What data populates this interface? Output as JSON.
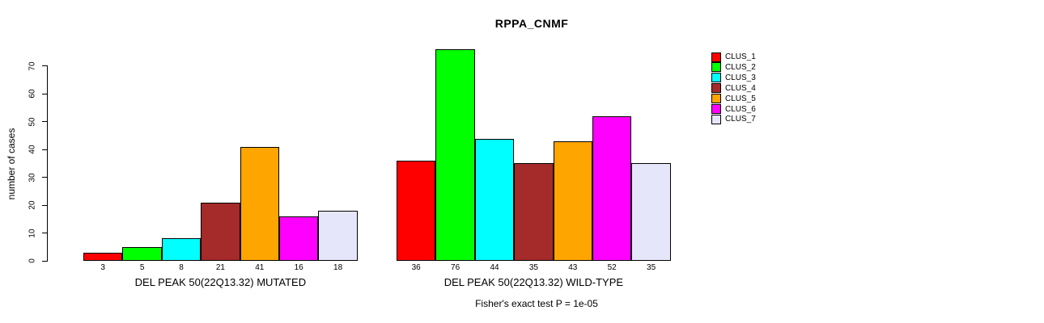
{
  "chart_data": {
    "type": "bar",
    "title": "RPPA_CNMF",
    "xlabel": "",
    "ylabel": "number of cases",
    "ylim": [
      0,
      70
    ],
    "yticks": [
      0,
      10,
      20,
      30,
      40,
      50,
      60,
      70
    ],
    "grid": false,
    "legend_position": "right",
    "legend": [
      "CLUS_1",
      "CLUS_2",
      "CLUS_3",
      "CLUS_4",
      "CLUS_5",
      "CLUS_6",
      "CLUS_7"
    ],
    "colors": [
      "#FF0000",
      "#00FF00",
      "#00FFFF",
      "#A52A2A",
      "#FFA500",
      "#FF00FF",
      "#E6E6FA"
    ],
    "groups": [
      {
        "label": "DEL PEAK 50(22Q13.32) MUTATED",
        "values": [
          3,
          5,
          8,
          21,
          41,
          16,
          18
        ]
      },
      {
        "label": "DEL PEAK 50(22Q13.32) WILD-TYPE",
        "values": [
          36,
          76,
          44,
          35,
          43,
          52,
          35
        ]
      }
    ],
    "footer": "Fisher's exact test P = 1e-05"
  }
}
